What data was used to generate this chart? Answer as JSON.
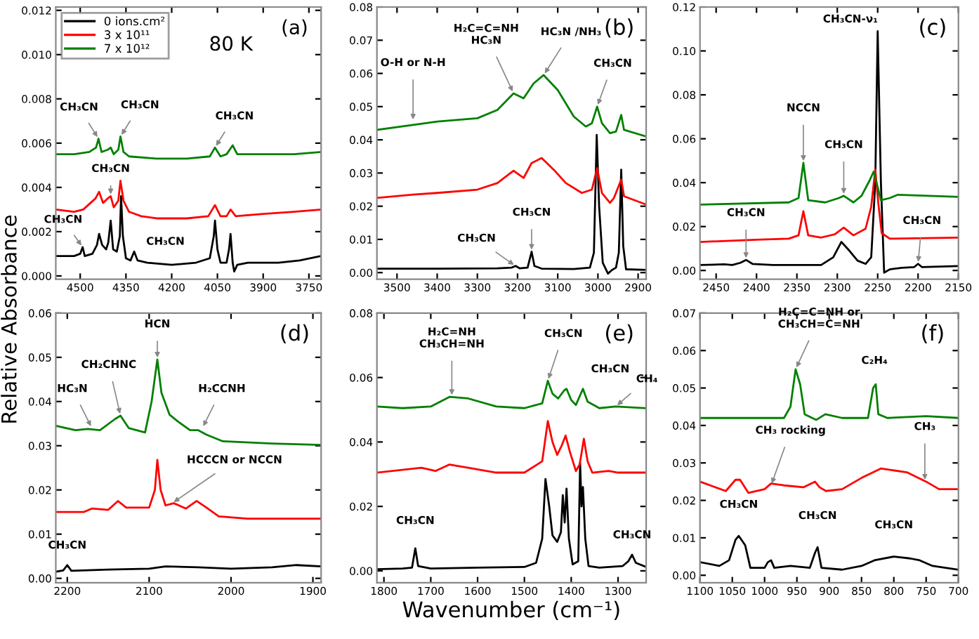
{
  "chart_data": [
    {
      "type": "line",
      "ylabel": "Relative Absorbance",
      "legend": "top left",
      "grid": false,
      "xlim": [
        4580,
        3710
      ],
      "xticks": [
        4500,
        4350,
        4200,
        4050,
        3900,
        3750
      ],
      "ylim": [
        -0.00015,
        0.01215
      ],
      "yticks": [
        {
          "value": 0,
          "label": "0.000"
        },
        {
          "value": 0.002,
          "label": "0.002"
        },
        {
          "value": 0.004,
          "label": "0.004"
        },
        {
          "value": 0.006,
          "label": "0.006"
        },
        {
          "value": 0.008,
          "label": "0.008"
        },
        {
          "value": 0.01,
          "label": "0.010"
        },
        {
          "value": 0.012,
          "label": "0.012"
        }
      ],
      "series": [
        {
          "name": "0 ions.cm²",
          "color": "#000000",
          "x": [
            4580,
            4550,
            4520,
            4500,
            4492,
            4485,
            4460,
            4445,
            4438,
            4428,
            4415,
            4408,
            4400,
            4392,
            4380,
            4370,
            4366,
            4360,
            4350,
            4335,
            4323,
            4312,
            4280,
            4200,
            4120,
            4075,
            4062,
            4058,
            4050,
            4040,
            4020,
            4012,
            4007,
            4000,
            3995,
            3985,
            3950,
            3850,
            3780,
            3710
          ],
          "values": [
            0.0009,
            0.0009,
            0.0009,
            0.001,
            0.0013,
            0.0009,
            0.001,
            0.0014,
            0.0019,
            0.0014,
            0.0012,
            0.0015,
            0.0025,
            0.0012,
            0.0011,
            0.0018,
            0.0036,
            0.0018,
            0.0008,
            0.0007,
            0.0011,
            0.0007,
            0.0006,
            0.0005,
            0.0006,
            0.0008,
            0.0018,
            0.0025,
            0.0012,
            0.0006,
            0.0006,
            0.0012,
            0.0019,
            0.0006,
            0.0002,
            0.0005,
            0.0006,
            0.0006,
            0.0007,
            0.0009
          ]
        },
        {
          "name": "3 x 10¹¹",
          "color": "#ff0000",
          "x": [
            4580,
            4520,
            4490,
            4450,
            4438,
            4425,
            4410,
            4400,
            4390,
            4375,
            4368,
            4358,
            4340,
            4300,
            4250,
            4150,
            4080,
            4058,
            4040,
            4020,
            4007,
            3990,
            3900,
            3800,
            3710
          ],
          "values": [
            0.003,
            0.0029,
            0.003,
            0.0035,
            0.0038,
            0.0033,
            0.0035,
            0.0036,
            0.0031,
            0.0034,
            0.0043,
            0.0034,
            0.0029,
            0.0027,
            0.0026,
            0.0026,
            0.0027,
            0.0032,
            0.0027,
            0.0027,
            0.003,
            0.0027,
            0.0028,
            0.0029,
            0.003
          ]
        },
        {
          "name": "7 x 10¹²",
          "color": "#008000",
          "x": [
            4580,
            4520,
            4470,
            4448,
            4440,
            4430,
            4410,
            4400,
            4390,
            4375,
            4368,
            4358,
            4340,
            4250,
            4150,
            4075,
            4058,
            4040,
            4020,
            4000,
            3985,
            3900,
            3800,
            3710
          ],
          "values": [
            0.0055,
            0.0055,
            0.0056,
            0.0058,
            0.0062,
            0.0056,
            0.0057,
            0.0058,
            0.0055,
            0.0057,
            0.0063,
            0.0056,
            0.0054,
            0.0053,
            0.0053,
            0.0054,
            0.0058,
            0.0054,
            0.0055,
            0.0059,
            0.0055,
            0.0055,
            0.0055,
            0.0056
          ]
        }
      ],
      "annotations": [
        "(a)",
        "80 K",
        {
          "text": "CH₃CN",
          "x": 4440,
          "y": 0.0062
        },
        {
          "text": "CH₃CN",
          "x": 4368,
          "y": 0.0063
        },
        {
          "text": "CH₃CN",
          "x": 4058,
          "y": 0.0058
        },
        {
          "text": "CH₃CN",
          "x": 4400,
          "y": 0.0036
        },
        {
          "text": "CH₃CN",
          "x": 4492,
          "y": 0.0013
        },
        {
          "text": "CH₃CN",
          "x": 4323,
          "y": 0.0011
        }
      ]
    },
    {
      "type": "line",
      "grid": false,
      "xlim": [
        3550,
        2880
      ],
      "xticks": [
        3500,
        3400,
        3300,
        3200,
        3100,
        3000,
        2900
      ],
      "ylim": [
        -0.002,
        0.08
      ],
      "yticks": [
        {
          "value": 0,
          "label": "0.00"
        },
        {
          "value": 0.01,
          "label": "0.01"
        },
        {
          "value": 0.02,
          "label": "0.02"
        },
        {
          "value": 0.03,
          "label": "0.03"
        },
        {
          "value": 0.04,
          "label": "0.04"
        },
        {
          "value": 0.05,
          "label": "0.05"
        },
        {
          "value": 0.06,
          "label": "0.06"
        },
        {
          "value": 0.07,
          "label": "0.07"
        },
        {
          "value": 0.08,
          "label": "0.08"
        }
      ],
      "series": [
        {
          "color": "#000000",
          "x": [
            3550,
            3400,
            3250,
            3215,
            3205,
            3195,
            3175,
            3165,
            3158,
            3140,
            3060,
            3020,
            3010,
            3003,
            2997,
            2988,
            2975,
            2965,
            2955,
            2948,
            2942,
            2937,
            2930,
            2880
          ],
          "values": [
            0.0012,
            0.0012,
            0.0013,
            0.0015,
            0.002,
            0.0013,
            0.0015,
            0.0063,
            0.002,
            0.0012,
            0.0011,
            0.0015,
            0.006,
            0.0415,
            0.02,
            0.003,
            -0.0003,
            0.0008,
            0.0015,
            0.006,
            0.031,
            0.008,
            0.001,
            0.0008
          ]
        },
        {
          "color": "#ff0000",
          "x": [
            3550,
            3460,
            3400,
            3300,
            3250,
            3210,
            3185,
            3165,
            3140,
            3110,
            3080,
            3040,
            3015,
            3002,
            2990,
            2970,
            2960,
            2942,
            2935,
            2880
          ],
          "values": [
            0.0225,
            0.0235,
            0.024,
            0.025,
            0.027,
            0.0307,
            0.0285,
            0.033,
            0.0345,
            0.031,
            0.027,
            0.024,
            0.025,
            0.0315,
            0.024,
            0.021,
            0.0225,
            0.028,
            0.023,
            0.0205
          ]
        },
        {
          "color": "#008000",
          "x": [
            3550,
            3460,
            3400,
            3300,
            3250,
            3210,
            3185,
            3160,
            3135,
            3100,
            3060,
            3030,
            3015,
            3002,
            2990,
            2970,
            2955,
            2942,
            2935,
            2880
          ],
          "values": [
            0.043,
            0.0445,
            0.0455,
            0.0465,
            0.049,
            0.054,
            0.0525,
            0.057,
            0.0595,
            0.055,
            0.047,
            0.044,
            0.045,
            0.05,
            0.045,
            0.042,
            0.0425,
            0.0475,
            0.043,
            0.041
          ]
        }
      ],
      "annotations": [
        "(b)",
        {
          "text": "O-H or N-H",
          "x": 3460,
          "y": 0.0455
        },
        {
          "text": "H₂C=C=NH\nHC₃N",
          "x": 3210,
          "y": 0.054
        },
        {
          "text": "HC₃N /NH₃",
          "x": 3135,
          "y": 0.0595
        },
        {
          "text": "CH₃CN",
          "x": 3002,
          "y": 0.05
        },
        {
          "text": "CH₃CN",
          "x": 3205,
          "y": 0.002
        },
        {
          "text": "CH₃CN",
          "x": 3165,
          "y": 0.0063
        }
      ]
    },
    {
      "type": "line",
      "grid": false,
      "xlim": [
        2470,
        2150
      ],
      "xticks": [
        2450,
        2400,
        2350,
        2300,
        2250,
        2200,
        2150
      ],
      "ylim": [
        -0.004,
        0.12
      ],
      "yticks": [
        {
          "value": 0,
          "label": "0.00"
        },
        {
          "value": 0.02,
          "label": "0.02"
        },
        {
          "value": 0.04,
          "label": "0.04"
        },
        {
          "value": 0.06,
          "label": "0.06"
        },
        {
          "value": 0.08,
          "label": "0.08"
        },
        {
          "value": 0.1,
          "label": "0.10"
        },
        {
          "value": 0.12,
          "label": "0.12"
        }
      ],
      "series": [
        {
          "color": "#000000",
          "x": [
            2470,
            2440,
            2430,
            2420,
            2413,
            2405,
            2380,
            2320,
            2305,
            2295,
            2285,
            2275,
            2265,
            2258,
            2253,
            2250,
            2246,
            2242,
            2235,
            2220,
            2205,
            2200,
            2195,
            2150
          ],
          "values": [
            0.0025,
            0.0028,
            0.0025,
            0.0035,
            0.0048,
            0.003,
            0.0025,
            0.0025,
            0.006,
            0.013,
            0.009,
            0.0045,
            0.003,
            0.006,
            0.04,
            0.109,
            0.04,
            -0.001,
            0.0005,
            0.0012,
            0.0015,
            0.003,
            0.0015,
            0.002
          ]
        },
        {
          "color": "#ff0000",
          "x": [
            2470,
            2400,
            2360,
            2348,
            2342,
            2336,
            2320,
            2303,
            2292,
            2280,
            2265,
            2258,
            2253,
            2249,
            2245,
            2235,
            2150
          ],
          "values": [
            0.013,
            0.014,
            0.0145,
            0.016,
            0.027,
            0.016,
            0.015,
            0.0165,
            0.0195,
            0.016,
            0.019,
            0.029,
            0.046,
            0.03,
            0.017,
            0.0145,
            0.015
          ]
        },
        {
          "color": "#008000",
          "x": [
            2470,
            2360,
            2348,
            2342,
            2336,
            2315,
            2298,
            2292,
            2280,
            2270,
            2260,
            2255,
            2250,
            2246,
            2235,
            2225,
            2150
          ],
          "values": [
            0.03,
            0.031,
            0.033,
            0.049,
            0.032,
            0.031,
            0.033,
            0.034,
            0.031,
            0.034,
            0.041,
            0.045,
            0.038,
            0.032,
            0.033,
            0.0345,
            0.0335
          ]
        }
      ],
      "annotations": [
        "(c)",
        {
          "text": "CH₃CN-ν₁",
          "x": 2250,
          "y": 0.109
        },
        {
          "text": "NCCN",
          "x": 2342,
          "y": 0.049
        },
        {
          "text": "CH₃CN",
          "x": 2292,
          "y": 0.034
        },
        {
          "text": "CH₃CN",
          "x": 2413,
          "y": 0.0048
        },
        {
          "text": "CH₃CN",
          "x": 2200,
          "y": 0.003
        }
      ]
    },
    {
      "type": "line",
      "grid": false,
      "xlim": [
        2214,
        1890
      ],
      "xticks": [
        2200,
        2100,
        2000,
        1900
      ],
      "ylim": [
        -0.001,
        0.06
      ],
      "yticks": [
        {
          "value": 0,
          "label": "0.00"
        },
        {
          "value": 0.01,
          "label": "0.01"
        },
        {
          "value": 0.02,
          "label": "0.02"
        },
        {
          "value": 0.03,
          "label": "0.03"
        },
        {
          "value": 0.04,
          "label": "0.04"
        },
        {
          "value": 0.05,
          "label": "0.05"
        },
        {
          "value": 0.06,
          "label": "0.06"
        }
      ],
      "series": [
        {
          "color": "#000000",
          "x": [
            2214,
            2205,
            2200,
            2195,
            2150,
            2100,
            2080,
            2040,
            2000,
            1950,
            1920,
            1890
          ],
          "values": [
            0.0015,
            0.0018,
            0.003,
            0.0017,
            0.002,
            0.0022,
            0.0027,
            0.0025,
            0.0022,
            0.0025,
            0.003,
            0.0027
          ]
        },
        {
          "color": "#ff0000",
          "x": [
            2214,
            2180,
            2170,
            2150,
            2138,
            2128,
            2100,
            2093,
            2090,
            2086,
            2080,
            2070,
            2055,
            2042,
            2030,
            2015,
            1980,
            1890
          ],
          "values": [
            0.015,
            0.015,
            0.0158,
            0.0155,
            0.0175,
            0.016,
            0.016,
            0.02,
            0.0268,
            0.02,
            0.0165,
            0.017,
            0.0158,
            0.0175,
            0.016,
            0.014,
            0.0135,
            0.0135
          ]
        },
        {
          "color": "#008000",
          "x": [
            2214,
            2190,
            2175,
            2160,
            2142,
            2135,
            2125,
            2105,
            2097,
            2090,
            2085,
            2075,
            2065,
            2050,
            2040,
            2030,
            2010,
            1950,
            1890
          ],
          "values": [
            0.0345,
            0.0335,
            0.0338,
            0.0335,
            0.036,
            0.0368,
            0.034,
            0.033,
            0.04,
            0.0495,
            0.042,
            0.037,
            0.0355,
            0.0335,
            0.0335,
            0.0325,
            0.031,
            0.0305,
            0.0302
          ]
        }
      ],
      "annotations": [
        "(d)",
        {
          "text": "HCN",
          "x": 2090,
          "y": 0.0495
        },
        {
          "text": "CH₂CHNC",
          "x": 2135,
          "y": 0.0368
        },
        {
          "text": "HC₃N",
          "x": 2170,
          "y": 0.034
        },
        {
          "text": "H₂CCNH",
          "x": 2035,
          "y": 0.034
        },
        {
          "text": "HCCCN or NCCN",
          "x": 2072,
          "y": 0.017
        },
        {
          "text": "CH₃CN",
          "x": 2200,
          "y": 0.003
        }
      ]
    },
    {
      "type": "line",
      "xlabel": "Wavenumber (cm⁻¹)",
      "grid": false,
      "xlim": [
        1815,
        1240
      ],
      "xticks": [
        1800,
        1700,
        1600,
        1500,
        1400,
        1300
      ],
      "ylim": [
        -0.0037,
        0.08
      ],
      "yticks": [
        {
          "value": 0,
          "label": "0.00"
        },
        {
          "value": 0.02,
          "label": "0.02"
        },
        {
          "value": 0.04,
          "label": "0.04"
        },
        {
          "value": 0.06,
          "label": "0.06"
        },
        {
          "value": 0.08,
          "label": "0.08"
        }
      ],
      "series": [
        {
          "color": "#000000",
          "x": [
            1815,
            1760,
            1740,
            1733,
            1727,
            1700,
            1600,
            1500,
            1475,
            1462,
            1455,
            1447,
            1440,
            1430,
            1422,
            1418,
            1414,
            1410,
            1405,
            1397,
            1385,
            1381,
            1378,
            1375,
            1370,
            1363,
            1340,
            1290,
            1278,
            1270,
            1262,
            1240
          ],
          "values": [
            0.0005,
            0.0007,
            0.001,
            0.007,
            0.0015,
            0.0007,
            0.001,
            0.0012,
            0.0025,
            0.01,
            0.0285,
            0.02,
            0.011,
            0.009,
            0.012,
            0.0235,
            0.015,
            0.0255,
            0.01,
            0.002,
            0.003,
            0.0335,
            0.02,
            0.026,
            0.01,
            0.0015,
            0.001,
            0.0015,
            0.003,
            0.005,
            0.0025,
            0.0012
          ]
        },
        {
          "color": "#ff0000",
          "x": [
            1815,
            1720,
            1690,
            1660,
            1620,
            1560,
            1500,
            1462,
            1450,
            1440,
            1430,
            1420,
            1412,
            1403,
            1390,
            1382,
            1373,
            1365,
            1355,
            1320,
            1300,
            1240
          ],
          "values": [
            0.0305,
            0.032,
            0.031,
            0.033,
            0.032,
            0.0305,
            0.0305,
            0.034,
            0.0465,
            0.04,
            0.036,
            0.039,
            0.042,
            0.037,
            0.031,
            0.033,
            0.041,
            0.034,
            0.0305,
            0.031,
            0.0305,
            0.0305
          ]
        },
        {
          "color": "#008000",
          "x": [
            1815,
            1760,
            1700,
            1660,
            1620,
            1560,
            1500,
            1462,
            1450,
            1440,
            1428,
            1415,
            1410,
            1400,
            1390,
            1375,
            1365,
            1340,
            1305,
            1240
          ],
          "values": [
            0.051,
            0.0505,
            0.051,
            0.054,
            0.0535,
            0.051,
            0.0505,
            0.052,
            0.059,
            0.055,
            0.0535,
            0.056,
            0.0565,
            0.053,
            0.0515,
            0.0565,
            0.0525,
            0.0505,
            0.051,
            0.0505
          ]
        }
      ],
      "annotations": [
        "(e)",
        {
          "text": "H₂C=NH\nCH₃CH=NH",
          "x": 1655,
          "y": 0.054
        },
        {
          "text": "CH₃CN",
          "x": 1450,
          "y": 0.059
        },
        {
          "text": "CH₃CN",
          "x": 1375,
          "y": 0.0565
        },
        {
          "text": "CH₄",
          "x": 1305,
          "y": 0.051
        },
        {
          "text": "CH₃CN",
          "x": 1733,
          "y": 0.007
        },
        {
          "text": "CH₃CN",
          "x": 1270,
          "y": 0.005
        }
      ]
    },
    {
      "type": "line",
      "grid": false,
      "xlim": [
        1100,
        700
      ],
      "xticks": [
        1100,
        1050,
        1000,
        950,
        900,
        850,
        800,
        750,
        700
      ],
      "ylim": [
        -0.002,
        0.07
      ],
      "yticks": [
        {
          "value": 0,
          "label": "0.00"
        },
        {
          "value": 0.01,
          "label": "0.01"
        },
        {
          "value": 0.02,
          "label": "0.02"
        },
        {
          "value": 0.03,
          "label": "0.03"
        },
        {
          "value": 0.04,
          "label": "0.04"
        },
        {
          "value": 0.05,
          "label": "0.05"
        },
        {
          "value": 0.06,
          "label": "0.06"
        },
        {
          "value": 0.07,
          "label": "0.07"
        }
      ],
      "series": [
        {
          "color": "#000000",
          "x": [
            1100,
            1070,
            1055,
            1045,
            1040,
            1030,
            1022,
            1000,
            995,
            990,
            985,
            960,
            930,
            922,
            918,
            912,
            880,
            850,
            830,
            800,
            775,
            760,
            740,
            700
          ],
          "values": [
            0.0035,
            0.0025,
            0.004,
            0.0095,
            0.0105,
            0.008,
            0.002,
            0.002,
            0.0035,
            0.004,
            0.002,
            0.0025,
            0.002,
            0.006,
            0.0075,
            0.002,
            0.0015,
            0.0025,
            0.004,
            0.005,
            0.0045,
            0.004,
            0.0025,
            0.0015
          ]
        },
        {
          "color": "#ff0000",
          "x": [
            1100,
            1060,
            1045,
            1038,
            1025,
            1000,
            990,
            970,
            940,
            922,
            915,
            905,
            880,
            850,
            820,
            780,
            750,
            730,
            700
          ],
          "values": [
            0.025,
            0.0225,
            0.0255,
            0.0255,
            0.022,
            0.023,
            0.0245,
            0.024,
            0.0235,
            0.025,
            0.0235,
            0.0225,
            0.023,
            0.026,
            0.0285,
            0.0275,
            0.025,
            0.023,
            0.023
          ]
        },
        {
          "color": "#008000",
          "x": [
            1100,
            1000,
            970,
            960,
            952,
            945,
            938,
            920,
            906,
            880,
            840,
            832,
            828,
            824,
            810,
            750,
            700
          ],
          "values": [
            0.042,
            0.042,
            0.042,
            0.045,
            0.055,
            0.051,
            0.043,
            0.0415,
            0.043,
            0.042,
            0.042,
            0.05,
            0.051,
            0.043,
            0.042,
            0.0425,
            0.042
          ]
        }
      ],
      "annotations": [
        "(f)",
        {
          "text": "H₂C=C=NH or\nCH₃CH=C=NH",
          "x": 952,
          "y": 0.055
        },
        {
          "text": "C₂H₄",
          "x": 830,
          "y": 0.051
        },
        {
          "text": "CH₃ rocking",
          "x": 990,
          "y": 0.024
        },
        {
          "text": "CH₃",
          "x": 752,
          "y": 0.025
        },
        {
          "text": "CH₃CN",
          "x": 1040,
          "y": 0.0105
        },
        {
          "text": "CH₃CN",
          "x": 918,
          "y": 0.0075
        },
        {
          "text": "CH₃CN",
          "x": 800,
          "y": 0.005
        }
      ]
    }
  ]
}
